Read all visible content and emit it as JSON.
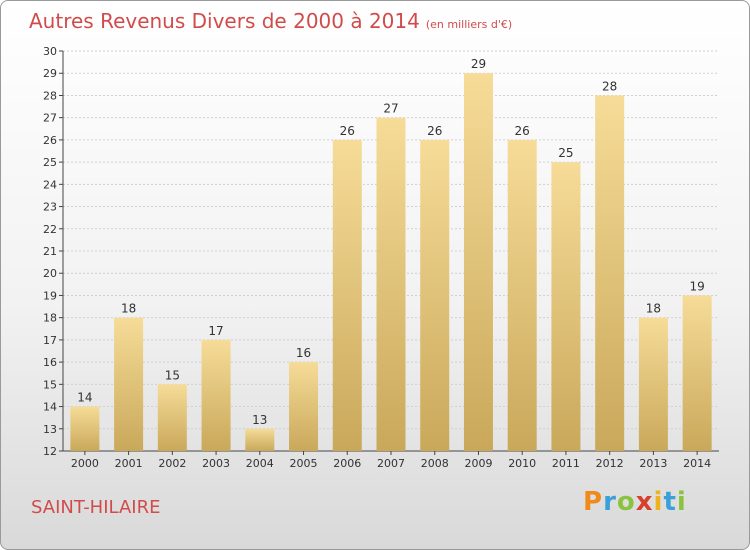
{
  "chart_data": {
    "type": "bar",
    "title": "Autres Revenus Divers de 2000 à 2014",
    "subtitle": "(en milliers d'€)",
    "categories": [
      "2000",
      "2001",
      "2002",
      "2003",
      "2004",
      "2005",
      "2006",
      "2007",
      "2008",
      "2009",
      "2010",
      "2011",
      "2012",
      "2013",
      "2014"
    ],
    "values": [
      14,
      18,
      15,
      17,
      13,
      16,
      26,
      27,
      26,
      29,
      26,
      25,
      28,
      18,
      19
    ],
    "ylim": [
      12,
      30
    ],
    "yticks": [
      12,
      13,
      14,
      15,
      16,
      17,
      18,
      19,
      20,
      21,
      22,
      23,
      24,
      25,
      26,
      27,
      28,
      29,
      30
    ],
    "grid": true,
    "bar_color_top": "#f6dc98",
    "bar_color_bottom": "#c9a85a"
  },
  "footer": {
    "location": "SAINT-HILAIRE",
    "logo_letters": [
      "P",
      "r",
      "o",
      "x",
      "i",
      "t",
      "i"
    ],
    "logo_colors": [
      "#f08a1c",
      "#3aa0d8",
      "#8ac43f",
      "#d8402e",
      "#f0b21c",
      "#3aa0d8",
      "#8ac43f"
    ]
  }
}
